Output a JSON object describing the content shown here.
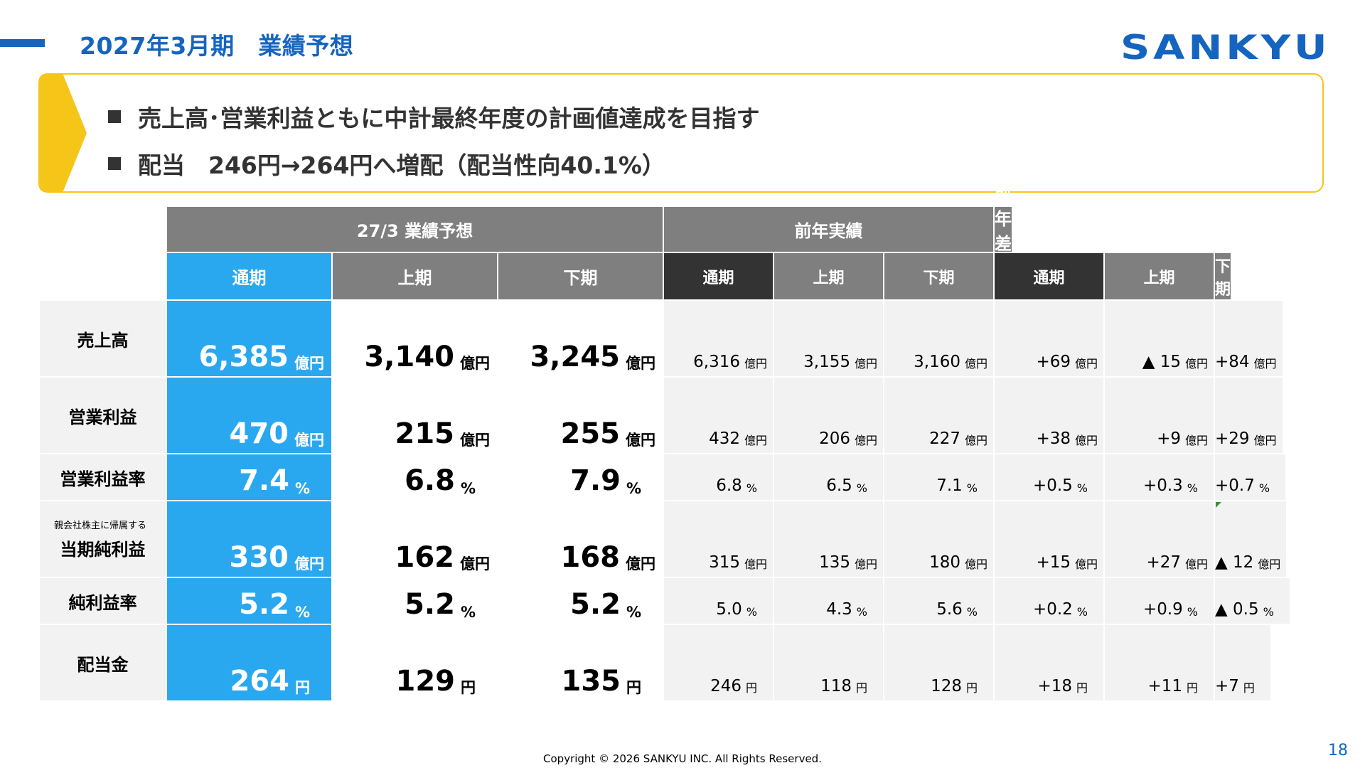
{
  "header": {
    "title": "2027年3月期　業績予想",
    "logo_text": "SANKYU"
  },
  "highlights": [
    "売上高･営業利益ともに中計最終年度の計画値達成を目指す",
    "配当　246円→264円へ増配（配当性向40.1%）"
  ],
  "table": {
    "groups": [
      "27/3 業績予想",
      "前年実績",
      "前年差異"
    ],
    "subheaders": [
      "通期",
      "上期",
      "下期",
      "通期",
      "上期",
      "下期",
      "通期",
      "上期",
      "下期"
    ],
    "rows": [
      {
        "label": "売上高",
        "sublabel": "",
        "unit": "億円",
        "values": [
          "6,385",
          "3,140",
          "3,245",
          "6,316",
          "3,155",
          "3,160",
          "+69",
          "▲ 15",
          "+84"
        ]
      },
      {
        "label": "営業利益",
        "sublabel": "",
        "unit": "億円",
        "values": [
          "470",
          "215",
          "255",
          "432",
          "206",
          "227",
          "+38",
          "+9",
          "+29"
        ]
      },
      {
        "label": "営業利益率",
        "sublabel": "",
        "unit": "%",
        "values": [
          "7.4",
          "6.8",
          "7.9",
          "6.8",
          "6.5",
          "7.1",
          "+0.5",
          "+0.3",
          "+0.7"
        ]
      },
      {
        "label": "当期純利益",
        "sublabel": "親会社株主に帰属する",
        "unit": "億円",
        "values": [
          "330",
          "162",
          "168",
          "315",
          "135",
          "180",
          "+15",
          "+27",
          "▲ 12"
        ]
      },
      {
        "label": "純利益率",
        "sublabel": "",
        "unit": "%",
        "values": [
          "5.2",
          "5.2",
          "5.2",
          "5.0",
          "4.3",
          "5.6",
          "+0.2",
          "+0.9",
          "▲ 0.5"
        ]
      },
      {
        "label": "配当金",
        "sublabel": "",
        "unit": "円",
        "values": [
          "264",
          "129",
          "135",
          "246",
          "118",
          "128",
          "+18",
          "+11",
          "+7"
        ]
      }
    ]
  },
  "footer": {
    "copyright": "Copyright © 2026 SANKYU INC. All Rights Reserved.",
    "page_number": "18"
  }
}
